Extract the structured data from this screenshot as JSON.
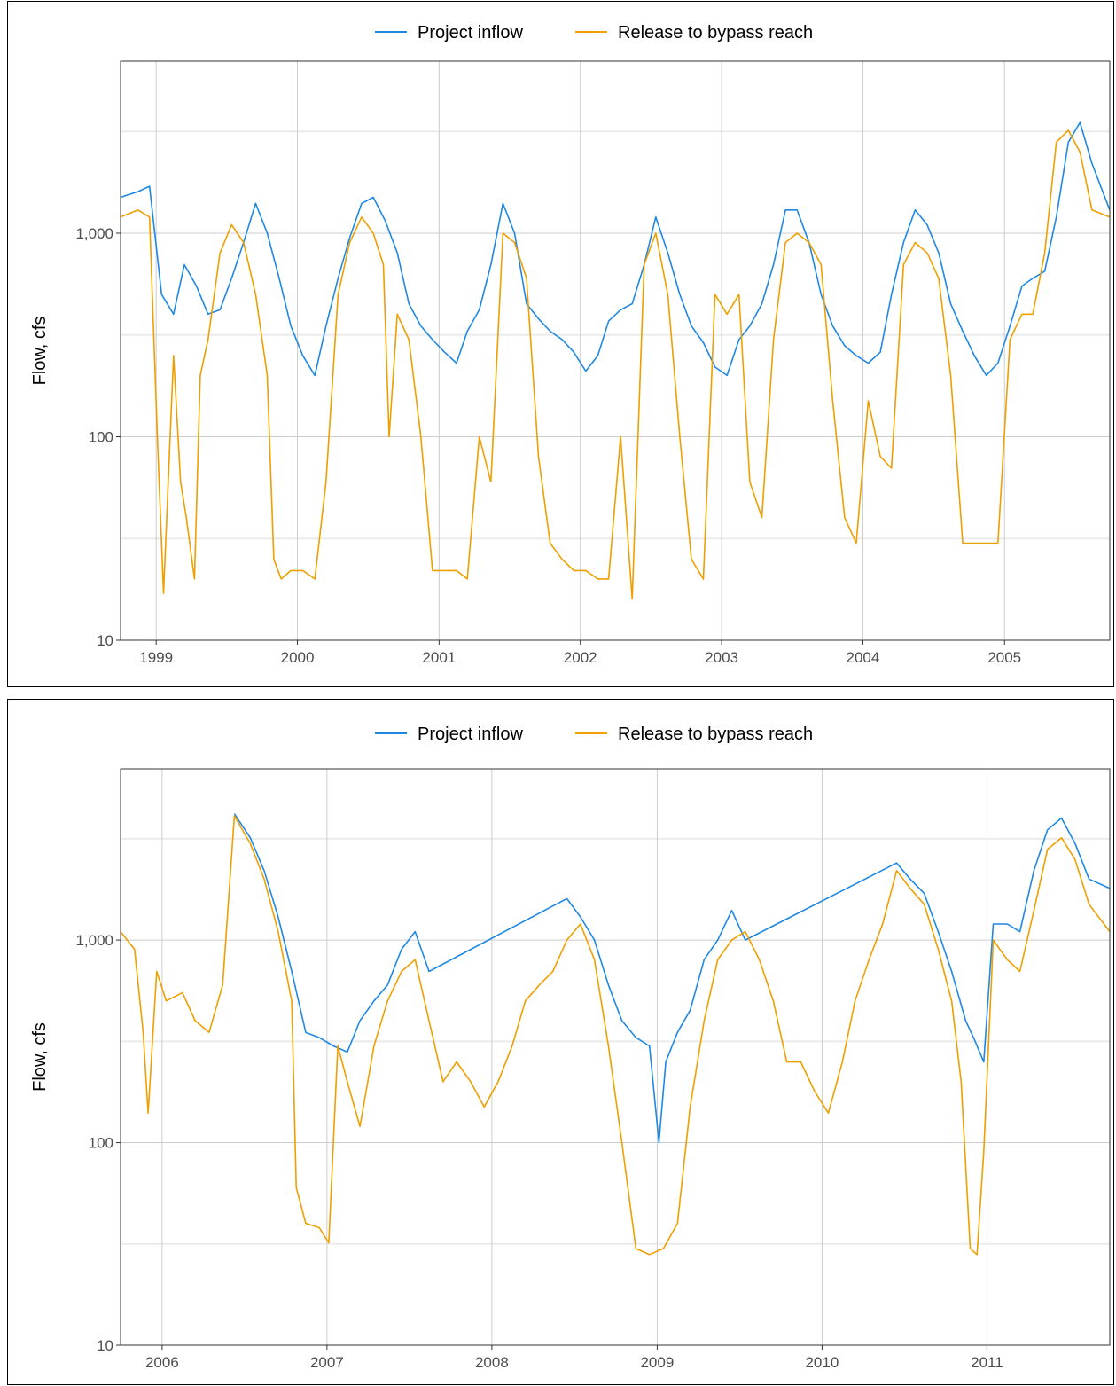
{
  "chart_data": [
    {
      "type": "line",
      "ylabel": "Flow, cfs",
      "y_scale": "log10",
      "ylim": [
        10,
        7000
      ],
      "xlim": [
        "1998-10-01",
        "2005-09-30"
      ],
      "x_ticks": [
        "1999",
        "2000",
        "2001",
        "2002",
        "2003",
        "2004",
        "2005"
      ],
      "y_ticks": [
        "10",
        "100",
        "1,000"
      ],
      "legend_position": "top",
      "grid": true,
      "series": [
        {
          "name": "Project inflow",
          "color": "#1e88e5",
          "x": [
            "1998-10-01",
            "1998-11-15",
            "1998-12-15",
            "1999-01-15",
            "1999-02-15",
            "1999-03-15",
            "1999-04-15",
            "1999-05-15",
            "1999-06-15",
            "1999-07-15",
            "1999-08-15",
            "1999-09-15",
            "1999-10-15",
            "1999-11-15",
            "1999-12-15",
            "2000-01-15",
            "2000-02-15",
            "2000-03-15",
            "2000-04-15",
            "2000-05-15",
            "2000-06-15",
            "2000-07-15",
            "2000-08-15",
            "2000-09-15",
            "2000-10-15",
            "2000-11-15",
            "2000-12-15",
            "2001-01-15",
            "2001-02-15",
            "2001-03-15",
            "2001-04-15",
            "2001-05-15",
            "2001-06-15",
            "2001-07-15",
            "2001-08-15",
            "2001-09-15",
            "2001-10-15",
            "2001-11-15",
            "2001-12-15",
            "2002-01-15",
            "2002-02-15",
            "2002-03-15",
            "2002-04-15",
            "2002-05-15",
            "2002-06-15",
            "2002-07-15",
            "2002-08-15",
            "2002-09-15",
            "2002-10-15",
            "2002-11-15",
            "2002-12-15",
            "2003-01-15",
            "2003-02-15",
            "2003-03-15",
            "2003-04-15",
            "2003-05-15",
            "2003-06-15",
            "2003-07-15",
            "2003-08-15",
            "2003-09-15",
            "2003-10-15",
            "2003-11-15",
            "2003-12-15",
            "2004-01-15",
            "2004-02-15",
            "2004-03-15",
            "2004-04-15",
            "2004-05-15",
            "2004-06-15",
            "2004-07-15",
            "2004-08-15",
            "2004-09-15",
            "2004-10-15",
            "2004-11-15",
            "2004-12-15",
            "2005-01-15",
            "2005-02-15",
            "2005-03-15",
            "2005-04-15",
            "2005-05-15",
            "2005-06-15",
            "2005-07-15",
            "2005-08-15",
            "2005-09-30"
          ],
          "values": [
            1500,
            1600,
            1700,
            500,
            400,
            700,
            550,
            400,
            420,
            600,
            900,
            1400,
            1000,
            600,
            350,
            250,
            200,
            350,
            600,
            950,
            1400,
            1500,
            1150,
            800,
            450,
            350,
            300,
            260,
            230,
            330,
            420,
            700,
            1400,
            1000,
            450,
            380,
            330,
            300,
            260,
            210,
            250,
            370,
            420,
            450,
            700,
            1200,
            800,
            500,
            350,
            290,
            220,
            200,
            300,
            350,
            450,
            700,
            1300,
            1300,
            900,
            500,
            350,
            280,
            250,
            230,
            260,
            500,
            900,
            1300,
            1100,
            800,
            450,
            330,
            250,
            200,
            230,
            350,
            550,
            600,
            650,
            1200,
            2800,
            3500,
            2200,
            1300
          ]
        },
        {
          "name": "Release to bypass reach",
          "color": "#ef9f00",
          "x": [
            "1998-10-01",
            "1998-11-15",
            "1998-12-15",
            "1999-01-05",
            "1999-01-20",
            "1999-02-15",
            "1999-03-05",
            "1999-03-20",
            "1999-04-10",
            "1999-04-25",
            "1999-05-15",
            "1999-06-15",
            "1999-07-15",
            "1999-08-15",
            "1999-09-15",
            "1999-10-15",
            "1999-11-01",
            "1999-11-20",
            "1999-12-15",
            "2000-01-15",
            "2000-02-15",
            "2000-03-15",
            "2000-04-15",
            "2000-05-15",
            "2000-06-15",
            "2000-07-15",
            "2000-08-10",
            "2000-08-25",
            "2000-09-15",
            "2000-10-15",
            "2000-11-15",
            "2000-12-15",
            "2001-01-15",
            "2001-02-15",
            "2001-03-15",
            "2001-04-15",
            "2001-05-15",
            "2001-06-15",
            "2001-07-15",
            "2001-08-15",
            "2001-09-15",
            "2001-10-15",
            "2001-11-15",
            "2001-12-15",
            "2002-01-15",
            "2002-02-15",
            "2002-03-15",
            "2002-04-15",
            "2002-05-15",
            "2002-06-15",
            "2002-07-15",
            "2002-08-15",
            "2002-09-15",
            "2002-10-15",
            "2002-11-15",
            "2002-12-15",
            "2003-01-15",
            "2003-02-15",
            "2003-03-15",
            "2003-04-15",
            "2003-05-15",
            "2003-06-15",
            "2003-07-15",
            "2003-08-15",
            "2003-09-15",
            "2003-10-15",
            "2003-11-15",
            "2003-12-15",
            "2004-01-15",
            "2004-02-15",
            "2004-03-15",
            "2004-04-15",
            "2004-05-15",
            "2004-06-15",
            "2004-07-15",
            "2004-08-15",
            "2004-09-15",
            "2004-10-15",
            "2004-11-15",
            "2004-12-15",
            "2005-01-15",
            "2005-02-15",
            "2005-03-15",
            "2005-04-15",
            "2005-05-15",
            "2005-06-15",
            "2005-07-15",
            "2005-08-15",
            "2005-09-30"
          ],
          "values": [
            1200,
            1300,
            1200,
            90,
            17,
            250,
            60,
            40,
            20,
            200,
            300,
            800,
            1100,
            900,
            500,
            200,
            25,
            20,
            22,
            22,
            20,
            60,
            500,
            900,
            1200,
            1000,
            700,
            100,
            400,
            300,
            100,
            22,
            22,
            22,
            20,
            100,
            60,
            1000,
            900,
            600,
            80,
            30,
            25,
            22,
            22,
            20,
            20,
            100,
            16,
            700,
            1000,
            500,
            100,
            25,
            20,
            500,
            400,
            500,
            60,
            40,
            300,
            900,
            1000,
            900,
            700,
            150,
            40,
            30,
            150,
            80,
            70,
            700,
            900,
            800,
            600,
            200,
            30,
            30,
            30,
            30,
            300,
            400,
            400,
            800,
            2800,
            3200,
            2500,
            1300,
            1200
          ]
        }
      ]
    },
    {
      "type": "line",
      "ylabel": "Flow, cfs",
      "y_scale": "log10",
      "ylim": [
        10,
        7000
      ],
      "xlim": [
        "2005-10-01",
        "2011-09-30"
      ],
      "x_ticks": [
        "2006",
        "2007",
        "2008",
        "2009",
        "2010",
        "2011"
      ],
      "y_ticks": [
        "10",
        "100",
        "1,000"
      ],
      "legend_position": "top",
      "grid": true,
      "series": [
        {
          "name": "Project inflow",
          "color": "#1e88e5",
          "x": [
            "2006-06-10",
            "2006-07-15",
            "2006-08-15",
            "2006-09-15",
            "2006-10-15",
            "2006-11-15",
            "2006-12-15",
            "2007-01-15",
            "2007-02-15",
            "2007-03-15",
            "2007-04-15",
            "2007-05-15",
            "2007-06-15",
            "2007-07-15",
            "2007-08-15",
            "2008-06-15",
            "2008-07-15",
            "2008-08-15",
            "2008-09-15",
            "2008-10-15",
            "2008-11-15",
            "2008-12-15",
            "2009-01-05",
            "2009-01-20",
            "2009-02-15",
            "2009-03-15",
            "2009-04-15",
            "2009-05-15",
            "2009-06-15",
            "2009-07-15",
            "2010-06-15",
            "2010-07-15",
            "2010-08-15",
            "2010-09-15",
            "2010-10-15",
            "2010-11-15",
            "2010-12-05",
            "2010-12-25",
            "2011-01-15",
            "2011-02-15",
            "2011-03-15",
            "2011-04-15",
            "2011-05-15",
            "2011-06-15",
            "2011-07-15",
            "2011-08-15",
            "2011-09-30"
          ],
          "values": [
            4200,
            3200,
            2200,
            1300,
            700,
            350,
            330,
            300,
            280,
            400,
            500,
            600,
            900,
            1100,
            700,
            1600,
            1300,
            1000,
            600,
            400,
            330,
            300,
            100,
            250,
            350,
            450,
            800,
            1000,
            1400,
            1000,
            2400,
            2000,
            1700,
            1100,
            700,
            400,
            320,
            250,
            1200,
            1200,
            1100,
            2200,
            3500,
            4000,
            3000,
            2000,
            1800
          ]
        },
        {
          "name": "Release to bypass reach",
          "color": "#ef9f00",
          "x": [
            "2005-10-01",
            "2005-11-01",
            "2005-11-20",
            "2005-12-01",
            "2005-12-20",
            "2006-01-10",
            "2006-02-15",
            "2006-03-15",
            "2006-04-15",
            "2006-05-15",
            "2006-06-10",
            "2006-07-15",
            "2006-08-15",
            "2006-09-15",
            "2006-10-15",
            "2006-10-25",
            "2006-11-15",
            "2006-12-15",
            "2007-01-05",
            "2007-01-25",
            "2007-02-15",
            "2007-03-15",
            "2007-04-15",
            "2007-05-15",
            "2007-06-15",
            "2007-07-15",
            "2007-08-15",
            "2007-09-15",
            "2007-10-15",
            "2007-11-15",
            "2007-12-15",
            "2008-01-15",
            "2008-02-15",
            "2008-03-15",
            "2008-04-15",
            "2008-05-15",
            "2008-06-15",
            "2008-07-15",
            "2008-08-15",
            "2008-09-15",
            "2008-10-15",
            "2008-11-15",
            "2008-12-15",
            "2009-01-15",
            "2009-02-15",
            "2009-03-15",
            "2009-04-15",
            "2009-05-15",
            "2009-06-15",
            "2009-07-15",
            "2009-08-15",
            "2009-09-15",
            "2009-10-15",
            "2009-11-15",
            "2009-12-15",
            "2010-01-15",
            "2010-02-15",
            "2010-03-15",
            "2010-04-15",
            "2010-05-15",
            "2010-06-15",
            "2010-07-15",
            "2010-08-15",
            "2010-09-15",
            "2010-10-15",
            "2010-11-05",
            "2010-11-25",
            "2010-12-10",
            "2010-12-25",
            "2011-01-15",
            "2011-02-15",
            "2011-03-15",
            "2011-04-15",
            "2011-05-15",
            "2011-06-15",
            "2011-07-15",
            "2011-08-15",
            "2011-09-30"
          ],
          "values": [
            1100,
            900,
            350,
            140,
            700,
            500,
            550,
            400,
            350,
            600,
            4100,
            3000,
            2000,
            1100,
            500,
            60,
            40,
            38,
            32,
            300,
            200,
            120,
            300,
            500,
            700,
            800,
            400,
            200,
            250,
            200,
            150,
            200,
            300,
            500,
            600,
            700,
            1000,
            1200,
            800,
            300,
            100,
            30,
            28,
            30,
            40,
            150,
            400,
            800,
            1000,
            1100,
            800,
            500,
            250,
            250,
            180,
            140,
            250,
            500,
            800,
            1200,
            2200,
            1800,
            1500,
            900,
            500,
            200,
            30,
            28,
            90,
            1000,
            800,
            700,
            1400,
            2800,
            3200,
            2500,
            1500,
            1100
          ]
        }
      ]
    }
  ]
}
